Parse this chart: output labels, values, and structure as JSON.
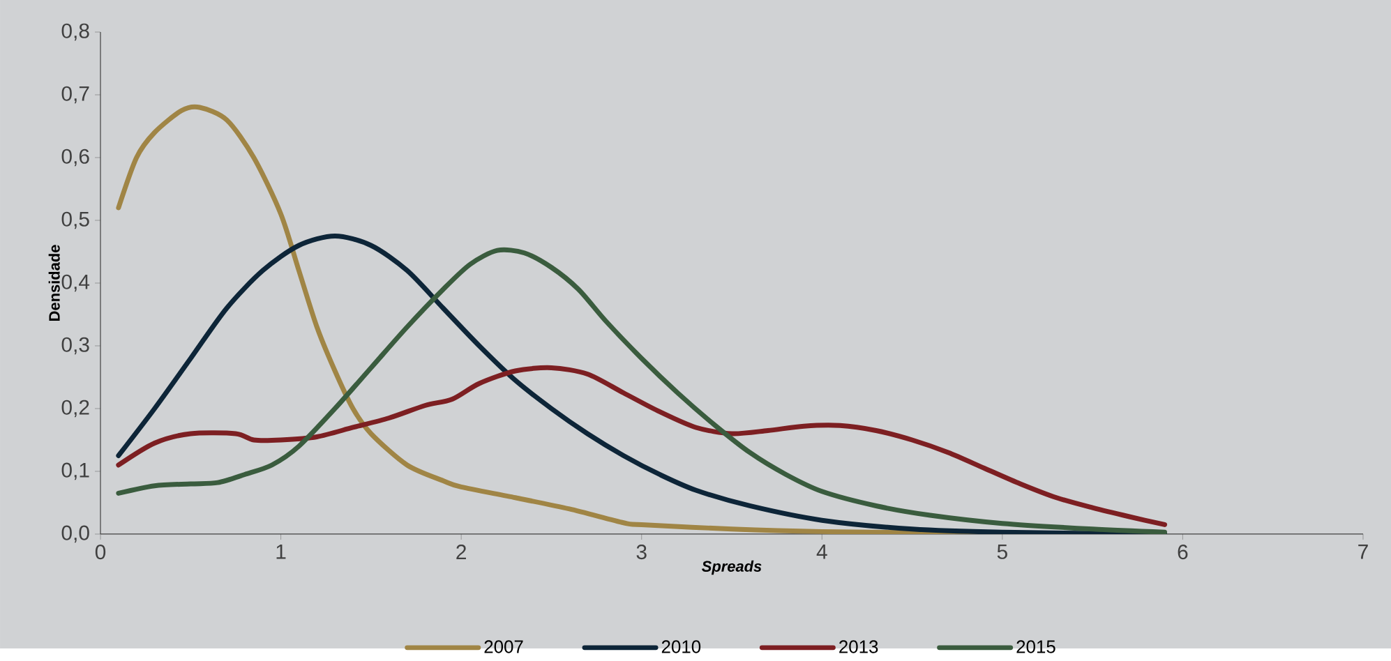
{
  "chart_data": {
    "type": "line",
    "xlabel": "Spreads",
    "ylabel": "Densidade",
    "xlim": [
      0,
      7
    ],
    "ylim": [
      0,
      0.8
    ],
    "xticks": [
      0,
      1,
      2,
      3,
      4,
      5,
      6,
      7
    ],
    "yticks": [
      {
        "value": 0,
        "label": "0,0"
      },
      {
        "value": 0.1,
        "label": "0,1"
      },
      {
        "value": 0.2,
        "label": "0,2"
      },
      {
        "value": 0.3,
        "label": "0,3"
      },
      {
        "value": 0.4,
        "label": "0,4"
      },
      {
        "value": 0.5,
        "label": "0,5"
      },
      {
        "value": 0.6,
        "label": "0,6"
      },
      {
        "value": 0.7,
        "label": "0,7"
      },
      {
        "value": 0.8,
        "label": "0,8"
      }
    ],
    "grid": false,
    "legend": "bottom",
    "marker": "none",
    "line_style": "solid",
    "series": [
      {
        "name": "2007",
        "color": "#a08545",
        "x": [
          0.1,
          0.2,
          0.3,
          0.45,
          0.55,
          0.7,
          0.85,
          1.0,
          1.1,
          1.2,
          1.3,
          1.4,
          1.5,
          1.7,
          1.9,
          2.0,
          2.3,
          2.6,
          2.9,
          3.0,
          3.5,
          4.0,
          5.0,
          5.9
        ],
        "values": [
          0.52,
          0.6,
          0.64,
          0.675,
          0.68,
          0.66,
          0.6,
          0.51,
          0.42,
          0.33,
          0.26,
          0.2,
          0.16,
          0.11,
          0.085,
          0.075,
          0.058,
          0.04,
          0.018,
          0.015,
          0.008,
          0.004,
          0.001,
          0
        ]
      },
      {
        "name": "2010",
        "color": "#0d2538",
        "x": [
          0.1,
          0.3,
          0.5,
          0.7,
          0.9,
          1.1,
          1.3,
          1.5,
          1.7,
          1.9,
          2.1,
          2.3,
          2.5,
          2.7,
          2.9,
          3.1,
          3.3,
          3.6,
          4.0,
          4.5,
          5.0,
          5.9
        ],
        "values": [
          0.125,
          0.2,
          0.28,
          0.36,
          0.42,
          0.46,
          0.475,
          0.46,
          0.42,
          0.36,
          0.3,
          0.245,
          0.2,
          0.16,
          0.125,
          0.095,
          0.07,
          0.045,
          0.022,
          0.008,
          0.003,
          0
        ]
      },
      {
        "name": "2013",
        "color": "#7d1f22",
        "x": [
          0.1,
          0.3,
          0.5,
          0.75,
          0.85,
          1.0,
          1.2,
          1.4,
          1.6,
          1.8,
          1.95,
          2.1,
          2.3,
          2.5,
          2.7,
          2.9,
          3.1,
          3.3,
          3.5,
          3.7,
          3.9,
          4.1,
          4.3,
          4.5,
          4.7,
          4.9,
          5.1,
          5.3,
          5.5,
          5.7,
          5.9
        ],
        "values": [
          0.11,
          0.145,
          0.16,
          0.16,
          0.15,
          0.15,
          0.155,
          0.17,
          0.185,
          0.205,
          0.215,
          0.24,
          0.26,
          0.265,
          0.255,
          0.225,
          0.195,
          0.17,
          0.16,
          0.165,
          0.172,
          0.173,
          0.165,
          0.15,
          0.13,
          0.105,
          0.08,
          0.058,
          0.042,
          0.028,
          0.015
        ]
      },
      {
        "name": "2015",
        "color": "#3a5c3e",
        "x": [
          0.1,
          0.3,
          0.5,
          0.65,
          0.8,
          0.95,
          1.1,
          1.3,
          1.5,
          1.7,
          1.9,
          2.05,
          2.2,
          2.35,
          2.5,
          2.65,
          2.8,
          3.0,
          3.2,
          3.4,
          3.6,
          3.8,
          4.0,
          4.3,
          4.6,
          5.0,
          5.5,
          5.9
        ],
        "values": [
          0.065,
          0.077,
          0.08,
          0.082,
          0.095,
          0.11,
          0.14,
          0.2,
          0.265,
          0.33,
          0.39,
          0.43,
          0.452,
          0.448,
          0.425,
          0.39,
          0.34,
          0.28,
          0.225,
          0.175,
          0.13,
          0.095,
          0.068,
          0.045,
          0.03,
          0.017,
          0.008,
          0.003
        ]
      }
    ]
  }
}
